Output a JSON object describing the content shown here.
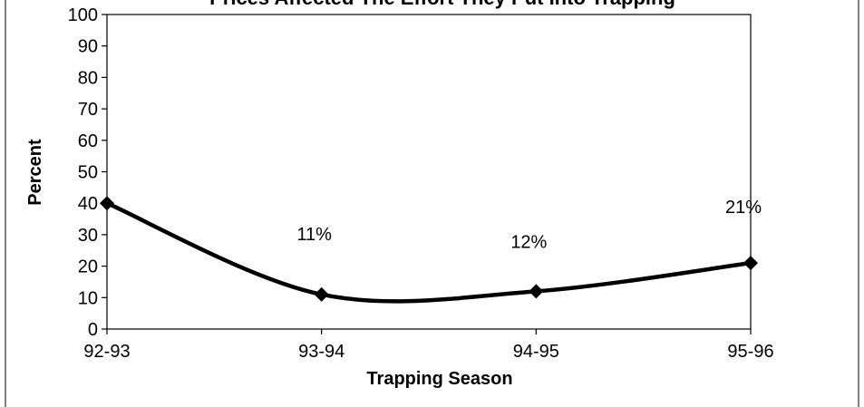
{
  "chart_data": {
    "type": "line",
    "title": "Prices Affected The Effort They Put Into Trapping",
    "xlabel": "Trapping Season",
    "ylabel": "Percent",
    "categories": [
      "92-93",
      "93-94",
      "94-95",
      "95-96"
    ],
    "series": [
      {
        "values": [
          40,
          11,
          12,
          21
        ]
      }
    ],
    "data_labels": [
      "",
      "11%",
      "12%",
      "21%"
    ],
    "ylim": [
      0,
      100
    ],
    "y_ticks": [
      0,
      10,
      20,
      30,
      40,
      50,
      60,
      70,
      80,
      90,
      100
    ],
    "grid": false,
    "legend": "none",
    "line_color": "#000000"
  }
}
